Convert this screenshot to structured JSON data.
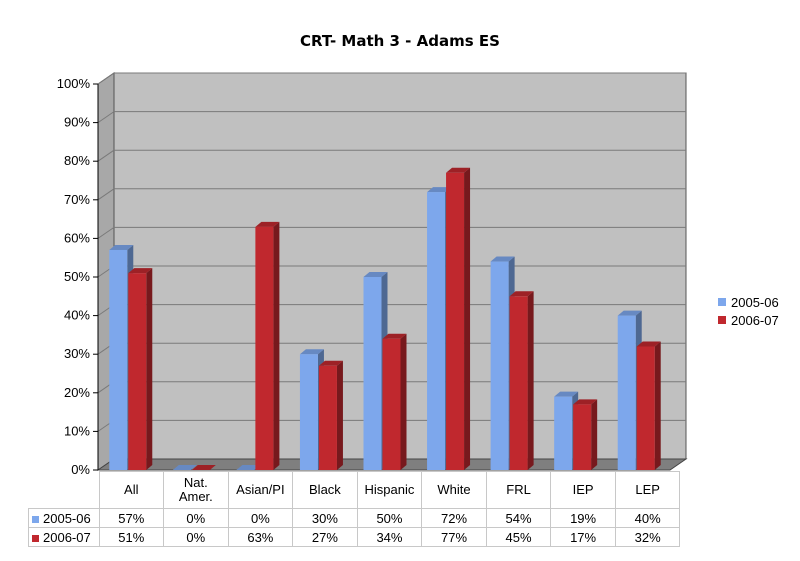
{
  "chart_data": {
    "type": "bar",
    "title": "CRT- Math 3 - Adams ES",
    "categories": [
      "All",
      "Nat.\nAmer.",
      "Asian/PI",
      "Black",
      "Hispanic",
      "White",
      "FRL",
      "IEP",
      "LEP"
    ],
    "series": [
      {
        "name": "2005-06",
        "color": "#7da7ec",
        "values": [
          57,
          0,
          0,
          30,
          50,
          72,
          54,
          19,
          40
        ],
        "labels": [
          "57%",
          "0%",
          "0%",
          "30%",
          "50%",
          "72%",
          "54%",
          "19%",
          "40%"
        ]
      },
      {
        "name": "2006-07",
        "color": "#c0282e",
        "values": [
          51,
          0,
          63,
          27,
          34,
          77,
          45,
          17,
          32
        ],
        "labels": [
          "51%",
          "0%",
          "63%",
          "27%",
          "34%",
          "77%",
          "45%",
          "17%",
          "32%"
        ]
      }
    ],
    "ylim": [
      0,
      100
    ],
    "yticks": [
      "0%",
      "10%",
      "20%",
      "30%",
      "40%",
      "50%",
      "60%",
      "70%",
      "80%",
      "90%",
      "100%"
    ],
    "grid": true,
    "legend_position": "right",
    "data_table": true
  }
}
